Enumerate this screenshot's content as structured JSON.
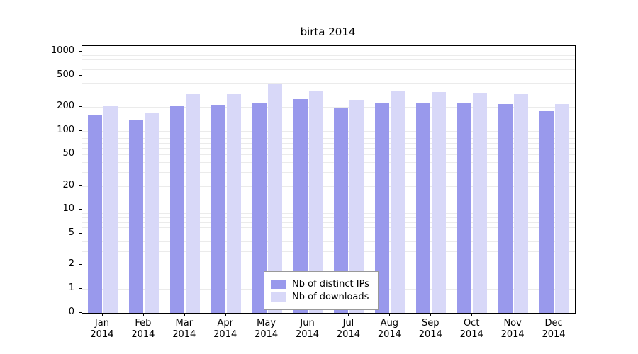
{
  "chart_data": {
    "type": "bar",
    "title": "birta 2014",
    "categories": [
      "Jan 2014",
      "Feb 2014",
      "Mar 2014",
      "Apr 2014",
      "May 2014",
      "Jun 2014",
      "Jul 2014",
      "Aug 2014",
      "Sep 2014",
      "Oct 2014",
      "Nov 2014",
      "Dec 2014"
    ],
    "series": [
      {
        "name": "Nb of distinct IPs",
        "color": "#9999ec",
        "values": [
          160,
          138,
          205,
          210,
          222,
          252,
          190,
          222,
          222,
          222,
          215,
          175
        ]
      },
      {
        "name": "Nb of downloads",
        "color": "#d8d8f8",
        "values": [
          205,
          168,
          288,
          290,
          388,
          318,
          248,
          322,
          310,
          295,
          288,
          215
        ]
      }
    ],
    "yscale": "log",
    "yticks": [
      1000,
      500,
      200,
      100,
      50,
      20,
      10,
      5,
      2,
      1,
      0
    ],
    "ylim": [
      0,
      1000
    ],
    "grid": true,
    "legend_position": "bottom-center"
  }
}
